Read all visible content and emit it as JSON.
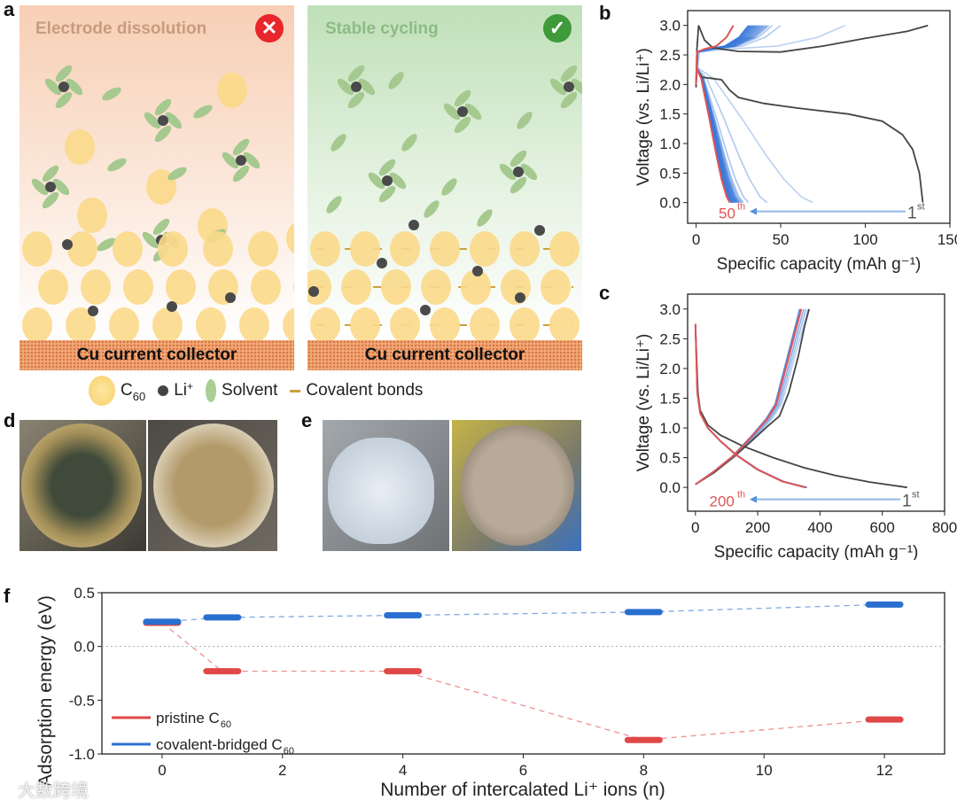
{
  "panel_labels": {
    "a": "a",
    "b": "b",
    "c": "c",
    "d": "d",
    "e": "e",
    "f": "f"
  },
  "scheme": {
    "left": {
      "title": "Electrode dissolution",
      "badge_icon": "cross-icon",
      "badge_color": "#e8262b",
      "collector": "Cu current collector"
    },
    "right": {
      "title": "Stable cycling",
      "badge_icon": "check-icon",
      "badge_color": "#3f9a3a",
      "collector": "Cu current collector"
    },
    "legend": [
      {
        "label": "C",
        "sub": "60"
      },
      {
        "label": "Li",
        "sup": "+"
      },
      {
        "label": "Solvent"
      },
      {
        "label": "Covalent bonds"
      }
    ]
  },
  "watermark": "大数跨境",
  "chart_data": [
    {
      "id": "b",
      "type": "line",
      "xlabel": "Specific capacity (mAh g⁻¹)",
      "ylabel": "Voltage (vs. Li/Li⁺)",
      "xlim": [
        -5,
        150
      ],
      "ylim": [
        -0.35,
        3.25
      ],
      "xticks": [
        0,
        50,
        100,
        150
      ],
      "yticks": [
        "0.0",
        "0.5",
        "1.0",
        "1.5",
        "2.0",
        "2.5",
        "3.0"
      ],
      "annotations": {
        "first": "1",
        "first_sup": "st",
        "last": "50",
        "last_sup": "th"
      },
      "first_cycle": {
        "color": "#444444",
        "discharge": [
          [
            0,
            2.25
          ],
          [
            4,
            2.12
          ],
          [
            10,
            2.1
          ],
          [
            15,
            2.08
          ],
          [
            20,
            1.9
          ],
          [
            25,
            1.78
          ],
          [
            40,
            1.68
          ],
          [
            60,
            1.6
          ],
          [
            90,
            1.5
          ],
          [
            110,
            1.38
          ],
          [
            122,
            1.15
          ],
          [
            128,
            0.9
          ],
          [
            132,
            0.5
          ],
          [
            134,
            0
          ]
        ],
        "charge": [
          [
            0,
            1.95
          ],
          [
            0.5,
            2.6
          ],
          [
            1.5,
            3.0
          ],
          [
            5,
            2.75
          ],
          [
            10,
            2.62
          ],
          [
            25,
            2.56
          ],
          [
            50,
            2.55
          ],
          [
            75,
            2.65
          ],
          [
            100,
            2.78
          ],
          [
            125,
            2.9
          ],
          [
            137,
            3.0
          ]
        ]
      },
      "intermediate_cycles": {
        "color": "#3a78d8",
        "discharge_end": [
          69,
          42,
          31,
          28,
          27,
          26,
          25.5,
          25,
          24.5,
          24,
          23.5,
          23,
          22.5,
          22,
          21.5,
          21
        ],
        "charge_end": [
          88,
          50,
          45,
          43,
          42,
          41,
          40,
          39,
          38,
          37,
          36,
          35,
          34,
          33,
          32,
          31
        ]
      },
      "last_cycle": {
        "color": "#e05555",
        "discharge": [
          [
            0,
            2.3
          ],
          [
            3,
            2.1
          ],
          [
            8,
            1.4
          ],
          [
            12,
            0.8
          ],
          [
            15,
            0.4
          ],
          [
            18,
            0.1
          ],
          [
            20,
            0
          ]
        ],
        "charge": [
          [
            0,
            2.0
          ],
          [
            0.5,
            2.55
          ],
          [
            5,
            2.6
          ],
          [
            12,
            2.65
          ],
          [
            18,
            2.8
          ],
          [
            22,
            3.0
          ]
        ]
      }
    },
    {
      "id": "c",
      "type": "line",
      "xlabel": "Specific capacity (mAh g⁻¹)",
      "ylabel": "Voltage (vs. Li/Li⁺)",
      "xlim": [
        -25,
        800
      ],
      "ylim": [
        -0.4,
        3.25
      ],
      "xticks": [
        0,
        200,
        400,
        600,
        800
      ],
      "yticks": [
        "0.0",
        "0.5",
        "1.0",
        "1.5",
        "2.0",
        "2.5",
        "3.0"
      ],
      "annotations": {
        "first": "1",
        "first_sup": "st",
        "last": "200",
        "last_sup": "th"
      },
      "first_cycle": {
        "color": "#444444",
        "discharge": [
          [
            0,
            2.7
          ],
          [
            8,
            1.6
          ],
          [
            15,
            1.3
          ],
          [
            40,
            1.05
          ],
          [
            80,
            0.88
          ],
          [
            150,
            0.7
          ],
          [
            250,
            0.5
          ],
          [
            350,
            0.33
          ],
          [
            450,
            0.2
          ],
          [
            560,
            0.09
          ],
          [
            680,
            0
          ]
        ],
        "charge": [
          [
            0,
            0.05
          ],
          [
            60,
            0.25
          ],
          [
            120,
            0.5
          ],
          [
            180,
            0.78
          ],
          [
            230,
            1.02
          ],
          [
            270,
            1.2
          ],
          [
            300,
            1.6
          ],
          [
            330,
            2.2
          ],
          [
            350,
            2.7
          ],
          [
            365,
            3.0
          ]
        ]
      },
      "intermediate_cycles": {
        "color": "#3a78d8",
        "discharge_end": [
          360,
          358,
          356,
          354,
          352
        ],
        "charge_end": [
          362,
          355,
          348,
          340,
          335
        ]
      },
      "last_cycle": {
        "color": "#e05555",
        "discharge": [
          [
            0,
            2.75
          ],
          [
            6,
            1.6
          ],
          [
            15,
            1.25
          ],
          [
            40,
            1.0
          ],
          [
            80,
            0.78
          ],
          [
            130,
            0.55
          ],
          [
            200,
            0.3
          ],
          [
            280,
            0.1
          ],
          [
            355,
            0
          ]
        ],
        "charge": [
          [
            0,
            0.05
          ],
          [
            60,
            0.27
          ],
          [
            120,
            0.52
          ],
          [
            180,
            0.85
          ],
          [
            230,
            1.15
          ],
          [
            260,
            1.4
          ],
          [
            290,
            2.0
          ],
          [
            320,
            2.6
          ],
          [
            340,
            3.0
          ]
        ]
      }
    },
    {
      "id": "f",
      "type": "line",
      "xlabel": "Number of intercalated Li⁺ ions (n)",
      "ylabel": "Adsorption energy (eV)",
      "xlim": [
        -1,
        13
      ],
      "ylim": [
        -1.0,
        0.5
      ],
      "xticks": [
        0,
        2,
        4,
        6,
        8,
        10,
        12
      ],
      "yticks": [
        "-1.0",
        "-0.5",
        "0.0",
        "0.5"
      ],
      "x": [
        0,
        1,
        4,
        8,
        12
      ],
      "series": [
        {
          "name": "pristine C",
          "sub": "60",
          "color": "#e04848",
          "values": [
            0.22,
            -0.23,
            -0.23,
            -0.87,
            -0.68
          ]
        },
        {
          "name": "covalent-bridged C",
          "sub": "60",
          "color": "#2a6fd0",
          "values": [
            0.23,
            0.27,
            0.29,
            0.32,
            0.39
          ]
        }
      ]
    }
  ]
}
